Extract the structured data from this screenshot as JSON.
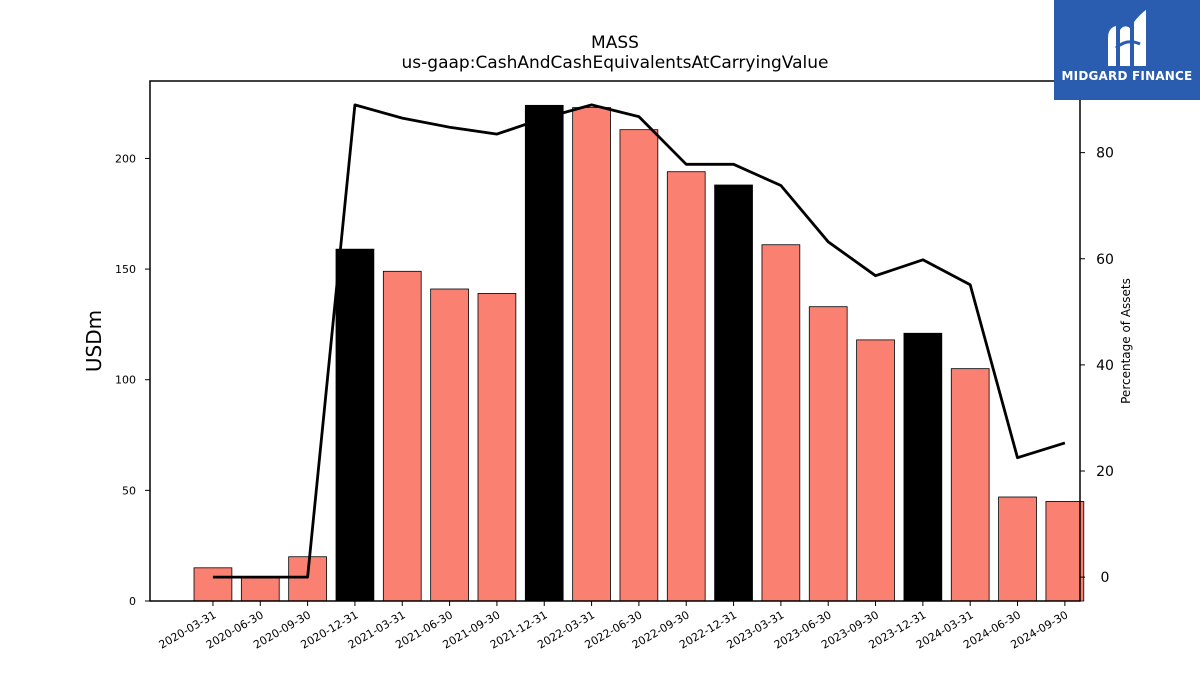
{
  "chart_data": {
    "type": "bar",
    "title": "MASS",
    "subtitle": "us-gaap:CashAndCashEquivalentsAtCarryingValue",
    "ylabel": "USDm",
    "y2label": "Percentage of Assets",
    "categories": [
      "2020-03-31",
      "2020-06-30",
      "2020-09-30",
      "2020-12-31",
      "2021-03-31",
      "2021-06-30",
      "2021-09-30",
      "2021-12-31",
      "2022-03-31",
      "2022-06-30",
      "2022-09-30",
      "2022-12-31",
      "2023-03-31",
      "2023-06-30",
      "2023-09-30",
      "2023-12-31",
      "2024-03-31",
      "2024-06-30",
      "2024-09-30"
    ],
    "series": [
      {
        "type": "bar",
        "values": [
          15,
          11,
          20,
          159,
          149,
          141,
          139,
          224,
          223,
          213,
          194,
          188,
          161,
          133,
          118,
          121,
          105,
          47,
          45
        ],
        "colors": [
          "#fa8072",
          "#fa8072",
          "#fa8072",
          "#000000",
          "#fa8072",
          "#fa8072",
          "#fa8072",
          "#000000",
          "#fa8072",
          "#fa8072",
          "#fa8072",
          "#000000",
          "#fa8072",
          "#fa8072",
          "#fa8072",
          "#000000",
          "#fa8072",
          "#fa8072",
          "#fa8072"
        ]
      },
      {
        "type": "line",
        "axis": "right",
        "values": [
          0,
          0,
          0,
          89,
          86.5,
          84.8,
          83.5,
          86.5,
          89,
          86.8,
          77.8,
          77.8,
          73.8,
          63.2,
          56.8,
          59.8,
          55.1,
          22.5,
          25.3
        ]
      }
    ],
    "ylim": [
      0,
      235
    ],
    "yticks": [
      0,
      50,
      100,
      150,
      200
    ],
    "y2lim": [
      -4.5,
      93.5
    ],
    "y2ticks": [
      0,
      20,
      40,
      60,
      80
    ]
  },
  "logo": {
    "name": "MIDGARD FINANCE"
  }
}
